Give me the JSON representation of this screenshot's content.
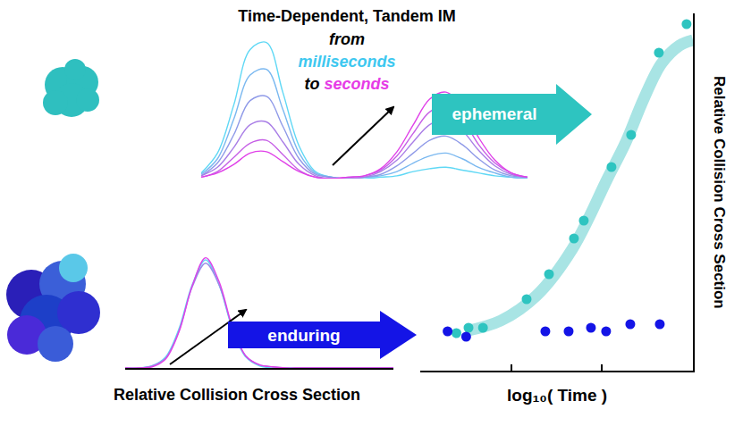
{
  "header": {
    "title": "Time-Dependent, Tandem IM",
    "from": "from",
    "start": "milliseconds",
    "to": "to",
    "end": "seconds",
    "start_color": "#3ec8f0",
    "end_color": "#e63ce6"
  },
  "arrows": [
    {
      "label": "ephemeral",
      "color": "#2ec4c0"
    },
    {
      "label": "enduring",
      "color": "#1414e6"
    }
  ],
  "spectra_label": "Relative Collision Cross Section",
  "spectra": [
    {
      "xlim": [
        0,
        1
      ],
      "ylim": [
        0,
        1.02
      ],
      "x": [
        0,
        0.05,
        0.1,
        0.15,
        0.2,
        0.25,
        0.3,
        0.35,
        0.4,
        0.45,
        0.5,
        0.55,
        0.6,
        0.65,
        0.7,
        0.75,
        0.8,
        0.85,
        0.9,
        0.95,
        1
      ],
      "series": [
        {
          "color": "#5fd8f5",
          "values": [
            0.04,
            0.18,
            0.52,
            0.91,
            0.96,
            0.61,
            0.23,
            0.05,
            0.01,
            0,
            0,
            0.01,
            0.02,
            0.05,
            0.07,
            0.08,
            0.06,
            0.04,
            0.02,
            0.01,
            0
          ]
        },
        {
          "color": "#7ab8f0",
          "values": [
            0.03,
            0.14,
            0.42,
            0.73,
            0.77,
            0.49,
            0.18,
            0.04,
            0.01,
            0,
            0.01,
            0.02,
            0.05,
            0.11,
            0.16,
            0.18,
            0.14,
            0.08,
            0.04,
            0.01,
            0
          ]
        },
        {
          "color": "#8f9ae8",
          "values": [
            0.02,
            0.11,
            0.31,
            0.55,
            0.58,
            0.37,
            0.14,
            0.03,
            0.01,
            0,
            0.01,
            0.03,
            0.09,
            0.18,
            0.27,
            0.3,
            0.24,
            0.14,
            0.06,
            0.02,
            0.01
          ]
        },
        {
          "color": "#a97ee6",
          "values": [
            0.02,
            0.08,
            0.22,
            0.38,
            0.4,
            0.26,
            0.1,
            0.02,
            0,
            0,
            0.01,
            0.05,
            0.13,
            0.26,
            0.38,
            0.42,
            0.34,
            0.2,
            0.09,
            0.03,
            0.01
          ]
        },
        {
          "color": "#c660e6",
          "values": [
            0.01,
            0.05,
            0.15,
            0.25,
            0.27,
            0.17,
            0.06,
            0.01,
            0,
            0.01,
            0.02,
            0.06,
            0.16,
            0.32,
            0.47,
            0.51,
            0.42,
            0.24,
            0.11,
            0.04,
            0.01
          ]
        },
        {
          "color": "#e040e8",
          "values": [
            0.01,
            0.04,
            0.1,
            0.18,
            0.19,
            0.12,
            0.05,
            0.01,
            0,
            0.01,
            0.02,
            0.07,
            0.19,
            0.38,
            0.56,
            0.61,
            0.5,
            0.29,
            0.13,
            0.04,
            0.01
          ]
        }
      ]
    },
    {
      "xlim": [
        0,
        1
      ],
      "ylim": [
        0,
        1.05
      ],
      "x": [
        0,
        0.05,
        0.1,
        0.15,
        0.2,
        0.25,
        0.3,
        0.35,
        0.4,
        0.45,
        0.5,
        0.55,
        0.6,
        0.65,
        0.7,
        0.75,
        0.8,
        0.85,
        0.9,
        0.95,
        1
      ],
      "series": [
        {
          "color": "#5fd8f5",
          "values": [
            0,
            0,
            0.02,
            0.1,
            0.36,
            0.77,
            1.0,
            0.77,
            0.36,
            0.1,
            0.02,
            0,
            0,
            0,
            0,
            0,
            0,
            0,
            0,
            0,
            0
          ]
        },
        {
          "color": "#9a8ce8",
          "values": [
            0,
            0,
            0.02,
            0.09,
            0.34,
            0.75,
            0.97,
            0.77,
            0.37,
            0.11,
            0.03,
            0.01,
            0,
            0,
            0,
            0,
            0,
            0,
            0,
            0,
            0
          ]
        },
        {
          "color": "#e040e8",
          "values": [
            0,
            0,
            0.01,
            0.08,
            0.33,
            0.76,
            1.02,
            0.8,
            0.38,
            0.11,
            0.03,
            0.01,
            0,
            0,
            0,
            0,
            0,
            0,
            0,
            0,
            0
          ]
        }
      ]
    }
  ],
  "chart_data": {
    "type": "scatter",
    "xlabel": "log₁₀( Time )",
    "ylabel": "Relative Collision Cross Section",
    "log": "x",
    "xlim": [
      10,
      10000
    ],
    "ylim": [
      0,
      1
    ],
    "xticks": [
      10,
      100,
      1000,
      10000
    ],
    "tick_labels": false,
    "grid": false,
    "series": [
      {
        "type": "line",
        "line_style": "solid",
        "color": "#a8e4e4",
        "x": [
          31,
          77,
          190,
          470,
          1160,
          1830,
          2870,
          4520,
          7110,
          10000
        ],
        "values": [
          0.11,
          0.14,
          0.21,
          0.34,
          0.54,
          0.64,
          0.76,
          0.86,
          0.91,
          0.925
        ]
      },
      {
        "type": "scatter",
        "marker": "circle",
        "color": "#2ec4c0",
        "x": [
          25,
          34,
          49,
          148,
          261,
          491,
          630,
          1271,
          2089,
          4220,
          8510
        ],
        "values": [
          0.105,
          0.12,
          0.12,
          0.2,
          0.27,
          0.37,
          0.42,
          0.57,
          0.66,
          0.89,
          0.97
        ]
      },
      {
        "type": "scatter",
        "marker": "circle",
        "color": "#1414e6",
        "x": [
          20,
          32,
          238,
          429,
          755,
          1109,
          2046,
          4320
        ],
        "values": [
          0.11,
          0.095,
          0.11,
          0.11,
          0.12,
          0.11,
          0.13,
          0.13
        ]
      }
    ]
  }
}
